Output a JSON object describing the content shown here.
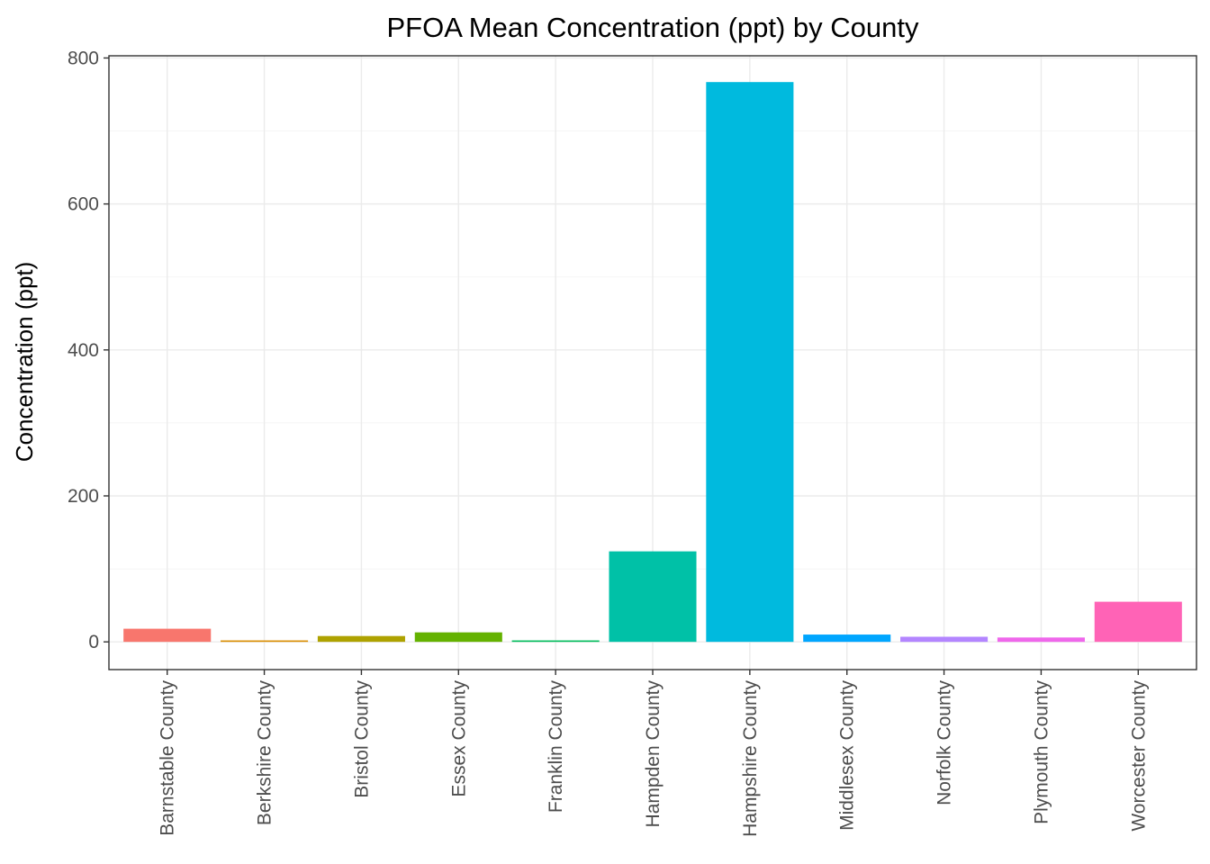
{
  "chart_data": {
    "type": "bar",
    "title": "PFOA  Mean Concentration (ppt) by County",
    "xlabel": "",
    "ylabel": "Concentration (ppt)",
    "ylim": [
      -38,
      803
    ],
    "yticks": [
      0,
      200,
      400,
      600,
      800
    ],
    "grid": true,
    "legend": "none",
    "categories": [
      "Barnstable County",
      "Berkshire County",
      "Bristol County",
      "Essex County",
      "Franklin County",
      "Hampden County",
      "Hampshire County",
      "Middlesex County",
      "Norfolk County",
      "Plymouth County",
      "Worcester County"
    ],
    "values": [
      18,
      2,
      8,
      13,
      2,
      124,
      767,
      10,
      7,
      6,
      55
    ],
    "colors": [
      "#F8766D",
      "#DB8E00",
      "#AEA200",
      "#64B200",
      "#00BD5C",
      "#00C1A7",
      "#00BADE",
      "#00A6FF",
      "#B385FF",
      "#EF67EB",
      "#FF63B6"
    ]
  }
}
